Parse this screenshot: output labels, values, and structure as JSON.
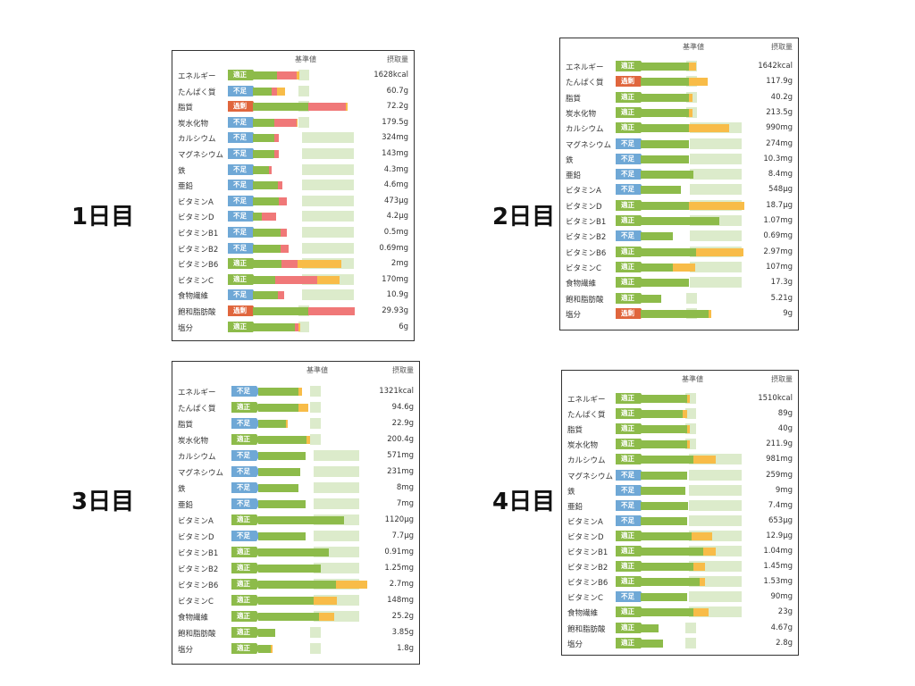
{
  "header": {
    "reference_label": "基準値",
    "intake_label": "摂取量"
  },
  "status_labels": {
    "ok": "適正",
    "low": "不足",
    "over": "過剰"
  },
  "colors": {
    "green": "#8dbb4a",
    "red": "#f07878",
    "yellow": "#f8bc48",
    "light": "#dcebcb",
    "ok": "#8dbb4a",
    "low": "#6fa8d6",
    "over": "#e0663d"
  },
  "chart_data": [
    {
      "type": "bar",
      "title": "1日目",
      "rows": [
        {
          "name": "エネルギー",
          "status": "ok",
          "value": "1628kcal",
          "green": 24,
          "red": 19,
          "yellow": 3,
          "ref": 55
        },
        {
          "name": "たんぱく質",
          "status": "low",
          "value": "60.7g",
          "green": 19,
          "red": 5,
          "yellow": 8,
          "ref": 55
        },
        {
          "name": "脂質",
          "status": "over",
          "value": "72.2g",
          "green": 55,
          "red": 37,
          "yellow": 2,
          "ref": 55
        },
        {
          "name": "炭水化物",
          "status": "low",
          "value": "179.5g",
          "green": 21,
          "red": 22,
          "yellow": 1,
          "ref": 55
        },
        {
          "name": "カルシウム",
          "status": "low",
          "value": "324mg",
          "green": 21,
          "red": 5,
          "yellow": 0,
          "ref": 100
        },
        {
          "name": "マグネシウム",
          "status": "low",
          "value": "143mg",
          "green": 21,
          "red": 5,
          "yellow": 0,
          "ref": 100
        },
        {
          "name": "鉄",
          "status": "low",
          "value": "4.3mg",
          "green": 16,
          "red": 3,
          "yellow": 0,
          "ref": 100
        },
        {
          "name": "亜鉛",
          "status": "low",
          "value": "4.6mg",
          "green": 25,
          "red": 4,
          "yellow": 0,
          "ref": 100
        },
        {
          "name": "ビタミンA",
          "status": "low",
          "value": "473μg",
          "green": 26,
          "red": 8,
          "yellow": 0,
          "ref": 100
        },
        {
          "name": "ビタミンD",
          "status": "low",
          "value": "4.2μg",
          "green": 9,
          "red": 14,
          "yellow": 0,
          "ref": 100
        },
        {
          "name": "ビタミンB1",
          "status": "low",
          "value": "0.5mg",
          "green": 27,
          "red": 7,
          "yellow": 0,
          "ref": 100
        },
        {
          "name": "ビタミンB2",
          "status": "low",
          "value": "0.69mg",
          "green": 27,
          "red": 8,
          "yellow": 0,
          "ref": 100
        },
        {
          "name": "ビタミンB6",
          "status": "ok",
          "value": "2mg",
          "green": 28,
          "red": 16,
          "yellow": 44,
          "ref": 100
        },
        {
          "name": "ビタミンC",
          "status": "ok",
          "value": "170mg",
          "green": 22,
          "red": 42,
          "yellow": 22,
          "ref": 100
        },
        {
          "name": "食物繊維",
          "status": "low",
          "value": "10.9g",
          "green": 25,
          "red": 6,
          "yellow": 0,
          "ref": 100
        },
        {
          "name": "飽和脂肪酸",
          "status": "over",
          "value": "29.93g",
          "green": 55,
          "red": 46,
          "yellow": 0,
          "ref": 55
        },
        {
          "name": "塩分",
          "status": "ok",
          "value": "6g",
          "green": 42,
          "red": 3,
          "yellow": 2,
          "ref": 55
        }
      ]
    },
    {
      "type": "bar",
      "title": "2日目",
      "rows": [
        {
          "name": "エネルギー",
          "status": "ok",
          "value": "1642kcal",
          "green": 48,
          "red": 0,
          "yellow": 7,
          "ref": 55
        },
        {
          "name": "たんぱく質",
          "status": "over",
          "value": "117.9g",
          "green": 48,
          "red": 0,
          "yellow": 18,
          "ref": 55
        },
        {
          "name": "脂質",
          "status": "ok",
          "value": "40.2g",
          "green": 48,
          "red": 0,
          "yellow": 3,
          "ref": 55
        },
        {
          "name": "炭水化物",
          "status": "ok",
          "value": "213.5g",
          "green": 48,
          "red": 0,
          "yellow": 3,
          "ref": 55
        },
        {
          "name": "カルシウム",
          "status": "ok",
          "value": "990mg",
          "green": 48,
          "red": 0,
          "yellow": 40,
          "ref": 100
        },
        {
          "name": "マグネシウム",
          "status": "low",
          "value": "274mg",
          "green": 48,
          "red": 0,
          "yellow": 0,
          "ref": 100
        },
        {
          "name": "鉄",
          "status": "low",
          "value": "10.3mg",
          "green": 48,
          "red": 0,
          "yellow": 0,
          "ref": 100
        },
        {
          "name": "亜鉛",
          "status": "low",
          "value": "8.4mg",
          "green": 52,
          "red": 0,
          "yellow": 0,
          "ref": 100
        },
        {
          "name": "ビタミンA",
          "status": "low",
          "value": "548μg",
          "green": 40,
          "red": 0,
          "yellow": 0,
          "ref": 100
        },
        {
          "name": "ビタミンD",
          "status": "ok",
          "value": "18.7μg",
          "green": 48,
          "red": 0,
          "yellow": 55,
          "ref": 100
        },
        {
          "name": "ビタミンB1",
          "status": "ok",
          "value": "1.07mg",
          "green": 78,
          "red": 0,
          "yellow": 0,
          "ref": 100
        },
        {
          "name": "ビタミンB2",
          "status": "low",
          "value": "0.69mg",
          "green": 32,
          "red": 0,
          "yellow": 0,
          "ref": 100
        },
        {
          "name": "ビタミンB6",
          "status": "ok",
          "value": "2.97mg",
          "green": 55,
          "red": 0,
          "yellow": 47,
          "ref": 100
        },
        {
          "name": "ビタミンC",
          "status": "ok",
          "value": "107mg",
          "green": 32,
          "red": 0,
          "yellow": 22,
          "ref": 100
        },
        {
          "name": "食物繊維",
          "status": "ok",
          "value": "17.3g",
          "green": 48,
          "red": 0,
          "yellow": 0,
          "ref": 100
        },
        {
          "name": "飽和脂肪酸",
          "status": "ok",
          "value": "5.21g",
          "green": 20,
          "red": 0,
          "yellow": 0,
          "ref": 55
        },
        {
          "name": "塩分",
          "status": "over",
          "value": "9g",
          "green": 67,
          "red": 0,
          "yellow": 3,
          "ref": 55
        }
      ]
    },
    {
      "type": "bar",
      "title": "3日目",
      "rows": [
        {
          "name": "エネルギー",
          "status": "low",
          "value": "1321kcal",
          "green": 40,
          "red": 0,
          "yellow": 3,
          "ref": 55
        },
        {
          "name": "たんぱく質",
          "status": "ok",
          "value": "94.6g",
          "green": 40,
          "red": 0,
          "yellow": 10,
          "ref": 55
        },
        {
          "name": "脂質",
          "status": "low",
          "value": "22.9g",
          "green": 27,
          "red": 0,
          "yellow": 2,
          "ref": 55
        },
        {
          "name": "炭水化物",
          "status": "ok",
          "value": "200.4g",
          "green": 48,
          "red": 0,
          "yellow": 3,
          "ref": 55
        },
        {
          "name": "カルシウム",
          "status": "low",
          "value": "571mg",
          "green": 47,
          "red": 0,
          "yellow": 0,
          "ref": 100
        },
        {
          "name": "マグネシウム",
          "status": "low",
          "value": "231mg",
          "green": 42,
          "red": 0,
          "yellow": 0,
          "ref": 100
        },
        {
          "name": "鉄",
          "status": "low",
          "value": "8mg",
          "green": 40,
          "red": 0,
          "yellow": 0,
          "ref": 100
        },
        {
          "name": "亜鉛",
          "status": "low",
          "value": "7mg",
          "green": 47,
          "red": 0,
          "yellow": 0,
          "ref": 100
        },
        {
          "name": "ビタミンA",
          "status": "ok",
          "value": "1120μg",
          "green": 85,
          "red": 0,
          "yellow": 0,
          "ref": 100
        },
        {
          "name": "ビタミンD",
          "status": "low",
          "value": "7.7μg",
          "green": 47,
          "red": 0,
          "yellow": 0,
          "ref": 100
        },
        {
          "name": "ビタミンB1",
          "status": "ok",
          "value": "0.91mg",
          "green": 70,
          "red": 0,
          "yellow": 0,
          "ref": 100
        },
        {
          "name": "ビタミンB2",
          "status": "ok",
          "value": "1.25mg",
          "green": 62,
          "red": 0,
          "yellow": 0,
          "ref": 100
        },
        {
          "name": "ビタミンB6",
          "status": "ok",
          "value": "2.7mg",
          "green": 77,
          "red": 0,
          "yellow": 31,
          "ref": 100
        },
        {
          "name": "ビタミンC",
          "status": "ok",
          "value": "148mg",
          "green": 55,
          "red": 0,
          "yellow": 23,
          "ref": 100
        },
        {
          "name": "食物繊維",
          "status": "ok",
          "value": "25.2g",
          "green": 60,
          "red": 0,
          "yellow": 15,
          "ref": 100
        },
        {
          "name": "飽和脂肪酸",
          "status": "ok",
          "value": "3.85g",
          "green": 17,
          "red": 0,
          "yellow": 0,
          "ref": 55
        },
        {
          "name": "塩分",
          "status": "ok",
          "value": "1.8g",
          "green": 12,
          "red": 0,
          "yellow": 2,
          "ref": 55
        }
      ]
    },
    {
      "type": "bar",
      "title": "4日目",
      "rows": [
        {
          "name": "エネルギー",
          "status": "ok",
          "value": "1510kcal",
          "green": 46,
          "red": 0,
          "yellow": 3,
          "ref": 55
        },
        {
          "name": "たんぱく質",
          "status": "ok",
          "value": "89g",
          "green": 42,
          "red": 0,
          "yellow": 4,
          "ref": 55
        },
        {
          "name": "脂質",
          "status": "ok",
          "value": "40g",
          "green": 46,
          "red": 0,
          "yellow": 3,
          "ref": 55
        },
        {
          "name": "炭水化物",
          "status": "ok",
          "value": "211.9g",
          "green": 46,
          "red": 0,
          "yellow": 3,
          "ref": 55
        },
        {
          "name": "カルシウム",
          "status": "ok",
          "value": "981mg",
          "green": 52,
          "red": 0,
          "yellow": 22,
          "ref": 100
        },
        {
          "name": "マグネシウム",
          "status": "low",
          "value": "259mg",
          "green": 46,
          "red": 0,
          "yellow": 0,
          "ref": 100
        },
        {
          "name": "鉄",
          "status": "low",
          "value": "9mg",
          "green": 44,
          "red": 0,
          "yellow": 0,
          "ref": 100
        },
        {
          "name": "亜鉛",
          "status": "low",
          "value": "7.4mg",
          "green": 47,
          "red": 0,
          "yellow": 0,
          "ref": 100
        },
        {
          "name": "ビタミンA",
          "status": "low",
          "value": "653μg",
          "green": 46,
          "red": 0,
          "yellow": 0,
          "ref": 100
        },
        {
          "name": "ビタミンD",
          "status": "ok",
          "value": "12.9μg",
          "green": 50,
          "red": 0,
          "yellow": 21,
          "ref": 100
        },
        {
          "name": "ビタミンB1",
          "status": "ok",
          "value": "1.04mg",
          "green": 62,
          "red": 0,
          "yellow": 12,
          "ref": 100
        },
        {
          "name": "ビタミンB2",
          "status": "ok",
          "value": "1.45mg",
          "green": 52,
          "red": 0,
          "yellow": 12,
          "ref": 100
        },
        {
          "name": "ビタミンB6",
          "status": "ok",
          "value": "1.53mg",
          "green": 58,
          "red": 0,
          "yellow": 6,
          "ref": 100
        },
        {
          "name": "ビタミンC",
          "status": "low",
          "value": "90mg",
          "green": 46,
          "red": 0,
          "yellow": 0,
          "ref": 100
        },
        {
          "name": "食物繊維",
          "status": "ok",
          "value": "23g",
          "green": 52,
          "red": 0,
          "yellow": 15,
          "ref": 100
        },
        {
          "name": "飽和脂肪酸",
          "status": "ok",
          "value": "4.67g",
          "green": 18,
          "red": 0,
          "yellow": 0,
          "ref": 55
        },
        {
          "name": "塩分",
          "status": "ok",
          "value": "2.8g",
          "green": 22,
          "red": 0,
          "yellow": 0,
          "ref": 55
        }
      ]
    }
  ]
}
